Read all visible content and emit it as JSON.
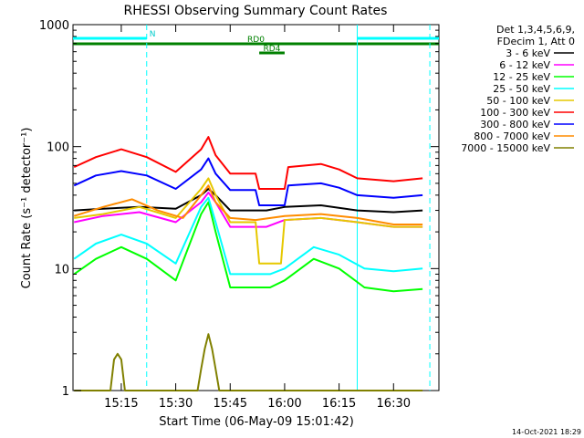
{
  "chart_data": {
    "type": "line",
    "title": "RHESSI Observing Summary Count Rates",
    "xlabel": "Start Time (06-May-09 15:01:42)",
    "ylabel": "Count Rate (s⁻¹ detector⁻¹)",
    "y_scale": "log",
    "ylim": [
      1,
      1000
    ],
    "xlim": [
      "15:01:42",
      "16:42:30"
    ],
    "x_ticks": [
      "15:15",
      "15:30",
      "15:45",
      "16:00",
      "16:15",
      "16:30"
    ],
    "y_ticks": [
      "1",
      "10",
      "100",
      "1000"
    ],
    "grid": false,
    "legend": {
      "position": "top-right",
      "header": [
        "Det 1,3,4,5,6,9,",
        "FDecim 1, Att 0"
      ]
    },
    "series": [
      {
        "name": "3 - 6 keV",
        "color": "#000000",
        "x": [
          "15:02",
          "15:10",
          "15:20",
          "15:30",
          "15:37",
          "15:39",
          "15:41",
          "15:45",
          "15:52",
          "15:55",
          "16:00",
          "16:10",
          "16:20",
          "16:30",
          "16:38"
        ],
        "y": [
          30,
          31,
          32,
          31,
          40,
          45,
          40,
          30,
          30,
          30,
          32,
          33,
          30,
          29,
          30
        ]
      },
      {
        "name": "6 - 12 keV",
        "color": "#ff00ff",
        "x": [
          "15:02",
          "15:10",
          "15:20",
          "15:30",
          "15:37",
          "15:39",
          "15:41",
          "15:45",
          "15:52",
          "15:55",
          "16:00",
          "16:10",
          "16:20",
          "16:30",
          "16:38"
        ],
        "y": [
          24,
          27,
          29,
          24,
          35,
          42,
          35,
          22,
          22,
          22,
          25,
          26,
          24,
          22,
          22
        ]
      },
      {
        "name": "12 - 25 keV",
        "color": "#00ff00",
        "x": [
          "15:02",
          "15:08",
          "15:15",
          "15:22",
          "15:30",
          "15:37",
          "15:39",
          "15:41",
          "15:45",
          "15:52",
          "15:56",
          "16:00",
          "16:08",
          "16:15",
          "16:22",
          "16:30",
          "16:38"
        ],
        "y": [
          9,
          12,
          15,
          12,
          8,
          28,
          35,
          20,
          7,
          7,
          7,
          8,
          12,
          10,
          7,
          6.5,
          6.8
        ]
      },
      {
        "name": "25 - 50 keV",
        "color": "#00ffff",
        "x": [
          "15:02",
          "15:08",
          "15:15",
          "15:22",
          "15:30",
          "15:37",
          "15:39",
          "15:41",
          "15:45",
          "15:52",
          "15:56",
          "16:00",
          "16:08",
          "16:15",
          "16:22",
          "16:30",
          "16:38"
        ],
        "y": [
          12,
          16,
          19,
          16,
          11,
          32,
          38,
          24,
          9,
          9,
          9,
          10,
          15,
          13,
          10,
          9.5,
          10
        ]
      },
      {
        "name": "50 - 100 keV",
        "color": "#e6c800",
        "x": [
          "15:02",
          "15:10",
          "15:20",
          "15:30",
          "15:37",
          "15:39",
          "15:41",
          "15:45",
          "15:52",
          "15:53",
          "15:59",
          "16:00",
          "16:10",
          "16:20",
          "16:30",
          "16:38"
        ],
        "y": [
          26,
          28,
          32,
          26,
          45,
          55,
          40,
          24,
          24,
          11,
          11,
          25,
          26,
          24,
          22,
          22
        ]
      },
      {
        "name": "100 - 300 keV",
        "color": "#ff0000",
        "x": [
          "15:02",
          "15:08",
          "15:15",
          "15:22",
          "15:30",
          "15:37",
          "15:39",
          "15:41",
          "15:45",
          "15:52",
          "15:53",
          "16:00",
          "16:01",
          "16:10",
          "16:15",
          "16:20",
          "16:30",
          "16:38"
        ],
        "y": [
          68,
          82,
          95,
          82,
          62,
          95,
          120,
          85,
          60,
          60,
          45,
          45,
          68,
          72,
          65,
          55,
          52,
          55
        ]
      },
      {
        "name": "300 - 800 keV",
        "color": "#0000ff",
        "x": [
          "15:02",
          "15:08",
          "15:15",
          "15:22",
          "15:30",
          "15:37",
          "15:39",
          "15:41",
          "15:45",
          "15:52",
          "15:53",
          "16:00",
          "16:01",
          "16:10",
          "16:15",
          "16:20",
          "16:30",
          "16:38"
        ],
        "y": [
          48,
          58,
          63,
          58,
          45,
          65,
          80,
          60,
          44,
          44,
          33,
          33,
          48,
          50,
          46,
          40,
          38,
          40
        ]
      },
      {
        "name": "800 - 7000 keV",
        "color": "#ff8c00",
        "x": [
          "15:02",
          "15:10",
          "15:18",
          "15:25",
          "15:32",
          "15:37",
          "15:39",
          "15:41",
          "15:45",
          "15:52",
          "16:00",
          "16:10",
          "16:20",
          "16:30",
          "16:38"
        ],
        "y": [
          27,
          32,
          37,
          30,
          26,
          40,
          48,
          35,
          26,
          25,
          27,
          28,
          26,
          23,
          23
        ]
      },
      {
        "name": "7000 - 15000 keV",
        "color": "#808000",
        "x": [
          "15:02",
          "15:12",
          "15:13",
          "15:14",
          "15:15",
          "15:16",
          "15:30",
          "15:36",
          "15:37",
          "15:38",
          "15:39",
          "15:40",
          "15:41",
          "15:42",
          "16:38"
        ],
        "y": [
          1,
          1,
          1.8,
          2,
          1.8,
          1,
          1,
          1,
          1.5,
          2.2,
          2.9,
          2.2,
          1.5,
          1,
          1
        ]
      }
    ],
    "annotations": [
      {
        "label": "N",
        "color": "#00ffff",
        "x": [
          "15:01:42",
          "15:22"
        ]
      },
      {
        "label": "",
        "color": "#00ffff",
        "x": [
          "16:20",
          "16:42:30"
        ]
      },
      {
        "label": "RD0",
        "color": "#008000",
        "x": [
          "15:01:42",
          "16:42:30"
        ]
      },
      {
        "label": "RD4",
        "color": "#008000",
        "x": [
          "15:53",
          "16:00"
        ]
      }
    ],
    "vertical_lines": [
      {
        "x": "15:22",
        "color": "#00ffff",
        "style": "dashed"
      },
      {
        "x": "16:20",
        "color": "#00ffff",
        "style": "solid"
      },
      {
        "x": "16:40",
        "color": "#00ffff",
        "style": "dashed"
      }
    ]
  },
  "footer": {
    "timestamp": "14-Oct-2021 18:29"
  }
}
